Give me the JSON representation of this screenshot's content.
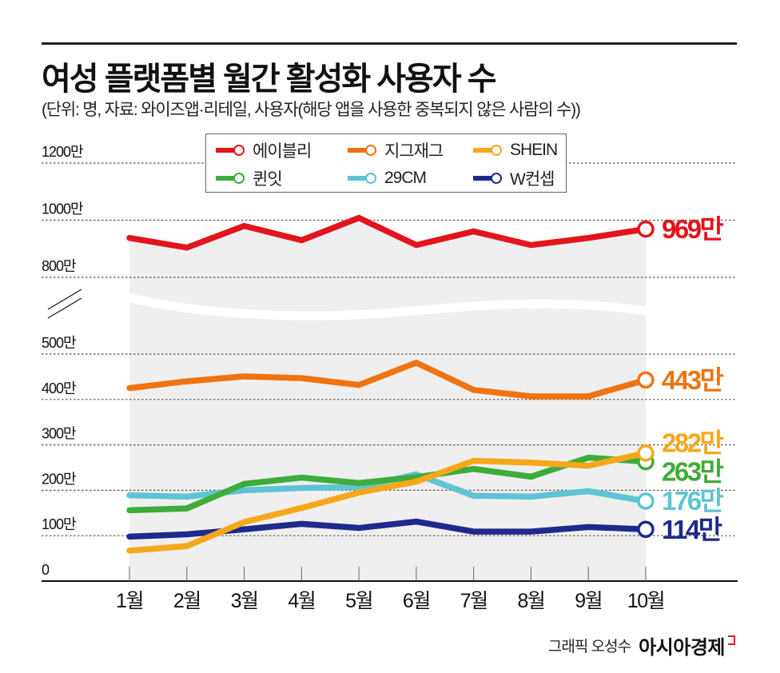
{
  "header": {
    "title": "여성 플랫폼별 월간 활성화 사용자 수",
    "subtitle": "(단위: 명, 자료: 와이즈앱·리테일, 사용자(해당 앱을 사용한 중복되지 않은 사람의 수))"
  },
  "chart_data": {
    "type": "line",
    "title": "여성 플랫폼별 월간 활성화 사용자 수",
    "subtitle": "(단위: 명, 자료: 와이즈앱·리테일, 사용자(해당 앱을 사용한 중복되지 않은 사람의 수))",
    "xlabel": "",
    "ylabel": "",
    "unit": "만",
    "categories": [
      "1월",
      "2월",
      "3월",
      "4월",
      "5월",
      "6월",
      "7월",
      "8월",
      "9월",
      "10월"
    ],
    "ylim": [
      0,
      1200
    ],
    "y_axis_break": [
      500,
      800
    ],
    "grid": true,
    "legend_position": "top-center",
    "yticks": [
      {
        "value": 0,
        "label": "0"
      },
      {
        "value": 100,
        "label": "100만"
      },
      {
        "value": 200,
        "label": "200만"
      },
      {
        "value": 300,
        "label": "300만"
      },
      {
        "value": 400,
        "label": "400만"
      },
      {
        "value": 500,
        "label": "500만"
      },
      {
        "value": 800,
        "label": "800만"
      },
      {
        "value": 1000,
        "label": "1000만"
      },
      {
        "value": 1200,
        "label": "1200만"
      }
    ],
    "series": [
      {
        "name": "에이블리",
        "color": "#e2141d",
        "values": [
          938,
          904,
          980,
          930,
          1008,
          913,
          961,
          913,
          938,
          969
        ],
        "end_label": "969만"
      },
      {
        "name": "지그재그",
        "color": "#ef7311",
        "values": [
          425,
          440,
          451,
          447,
          432,
          481,
          421,
          407,
          407,
          443
        ],
        "end_label": "443만"
      },
      {
        "name": "SHEIN",
        "color": "#f6a81a",
        "values": [
          67,
          77,
          130,
          161,
          195,
          219,
          265,
          261,
          254,
          282
        ],
        "end_label": "282만"
      },
      {
        "name": "퀸잇",
        "color": "#3eac3a",
        "values": [
          156,
          160,
          214,
          228,
          216,
          229,
          247,
          230,
          272,
          263
        ],
        "end_label": "263만"
      },
      {
        "name": "29CM",
        "color": "#5ec4d3",
        "values": [
          189,
          186,
          200,
          205,
          207,
          235,
          188,
          186,
          198,
          176
        ],
        "end_label": "176만"
      },
      {
        "name": "W컨셉",
        "color": "#1d2a8c",
        "values": [
          98,
          103,
          114,
          126,
          117,
          131,
          109,
          109,
          119,
          114
        ],
        "end_label": "114만"
      }
    ]
  },
  "footer": {
    "credit": "그래픽 오성수",
    "brand": "아시아경제",
    "brand_color": "#e2141d"
  }
}
